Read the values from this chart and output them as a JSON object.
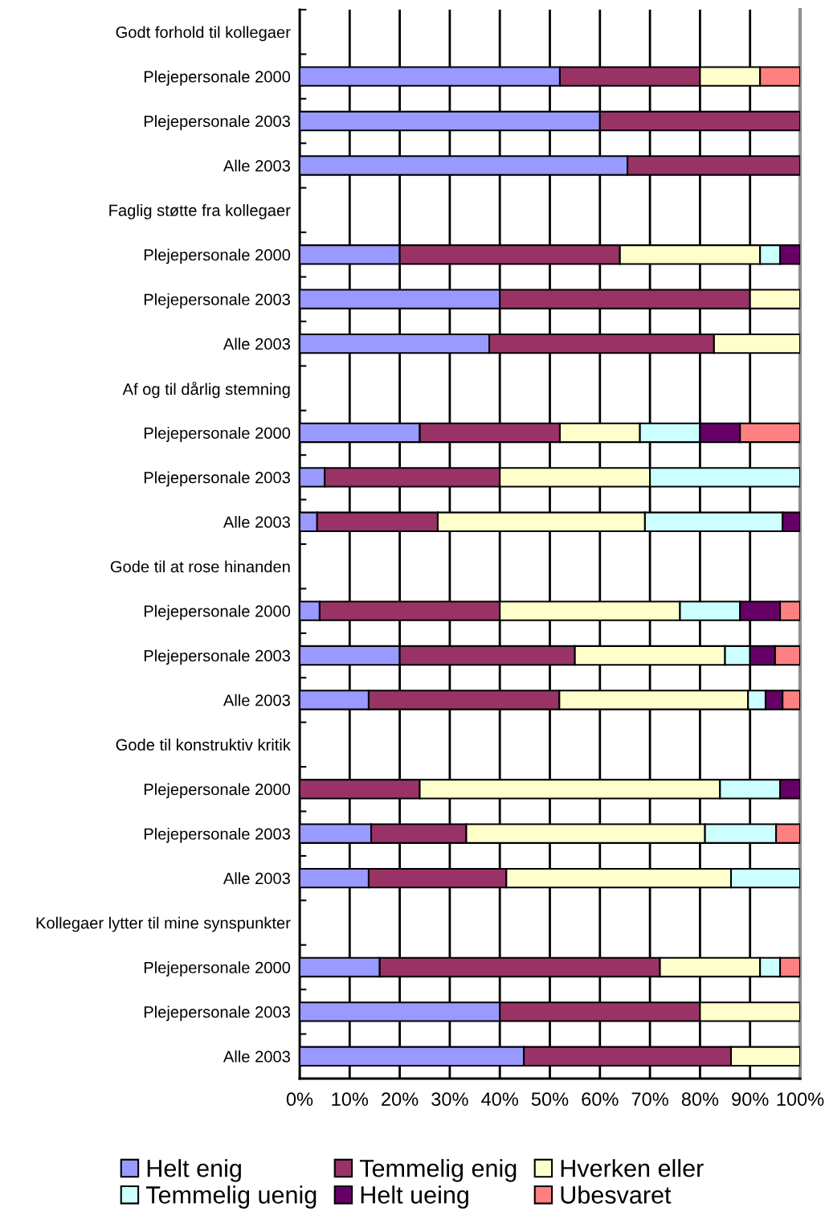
{
  "chart_data": {
    "type": "bar",
    "orientation": "horizontal",
    "stacked": true,
    "categories": [
      "Godt forhold til kollegaer",
      "Plejepersonale 2000",
      "Plejepersonale 2003",
      "Alle 2003",
      "Faglig støtte fra kollegaer",
      "Plejepersonale 2000",
      "Plejepersonale 2003",
      "Alle 2003",
      "Af og til dårlig stemning",
      "Plejepersonale 2000",
      "Plejepersonale 2003",
      "Alle 2003",
      "Gode til at rose hinanden",
      "Plejepersonale 2000",
      "Plejepersonale 2003",
      "Alle 2003",
      "Gode til konstruktiv kritik",
      "Plejepersonale 2000",
      "Plejepersonale 2003",
      "Alle 2003",
      "Kollegaer lytter til mine synspunkter",
      "Plejepersonale 2000",
      "Plejepersonale 2003",
      "Alle 2003"
    ],
    "series": [
      {
        "name": "Helt enig",
        "color": "#9999ff",
        "values": [
          null,
          52,
          60,
          65.5,
          null,
          20,
          40,
          37.9,
          null,
          24,
          5,
          3.5,
          null,
          4,
          20,
          13.8,
          null,
          null,
          14.3,
          13.8,
          null,
          16,
          40,
          44.8
        ]
      },
      {
        "name": "Temmelig enig",
        "color": "#993366",
        "values": [
          null,
          28,
          40,
          34.5,
          null,
          44,
          50,
          44.9,
          null,
          28,
          35,
          24.1,
          null,
          36,
          35,
          38.1,
          null,
          24,
          19,
          27.5,
          null,
          56,
          40,
          41.4
        ]
      },
      {
        "name": "Hverken eller",
        "color": "#ffffcc",
        "values": [
          null,
          12,
          null,
          null,
          null,
          28,
          10,
          17.2,
          null,
          16,
          30,
          41.4,
          null,
          36,
          30,
          37.7,
          null,
          60,
          47.7,
          44.9,
          null,
          20,
          20,
          13.8
        ]
      },
      {
        "name": "Temmelig uenig",
        "color": "#ccffff",
        "values": [
          null,
          null,
          null,
          null,
          null,
          4,
          null,
          null,
          null,
          12,
          30,
          27.5,
          null,
          12,
          5,
          3.5,
          null,
          12,
          14.2,
          13.8,
          null,
          4,
          null,
          null
        ]
      },
      {
        "name": "Helt ueing",
        "color": "#660066",
        "values": [
          null,
          null,
          null,
          null,
          null,
          4,
          null,
          null,
          null,
          8,
          null,
          3.5,
          null,
          8,
          5,
          3.4,
          null,
          4,
          null,
          null,
          null,
          null,
          null,
          null
        ]
      },
      {
        "name": "Ubesvaret",
        "color": "#ff8080",
        "values": [
          null,
          8,
          null,
          null,
          null,
          null,
          null,
          null,
          null,
          12,
          null,
          null,
          null,
          4,
          5,
          3.5,
          null,
          null,
          4.8,
          null,
          null,
          4,
          null,
          null
        ]
      }
    ],
    "xlim": [
      0,
      100
    ],
    "xticks": [
      {
        "value": 0,
        "label": "0%"
      },
      {
        "value": 10,
        "label": "10%"
      },
      {
        "value": 20,
        "label": "20%"
      },
      {
        "value": 30,
        "label": "30%"
      },
      {
        "value": 40,
        "label": "40%"
      },
      {
        "value": 50,
        "label": "50%"
      },
      {
        "value": 60,
        "label": "60%"
      },
      {
        "value": 70,
        "label": "70%"
      },
      {
        "value": 80,
        "label": "80%"
      },
      {
        "value": 90,
        "label": "90%"
      },
      {
        "value": 100,
        "label": "100%"
      }
    ],
    "grid": "x",
    "legend": "bottom"
  }
}
